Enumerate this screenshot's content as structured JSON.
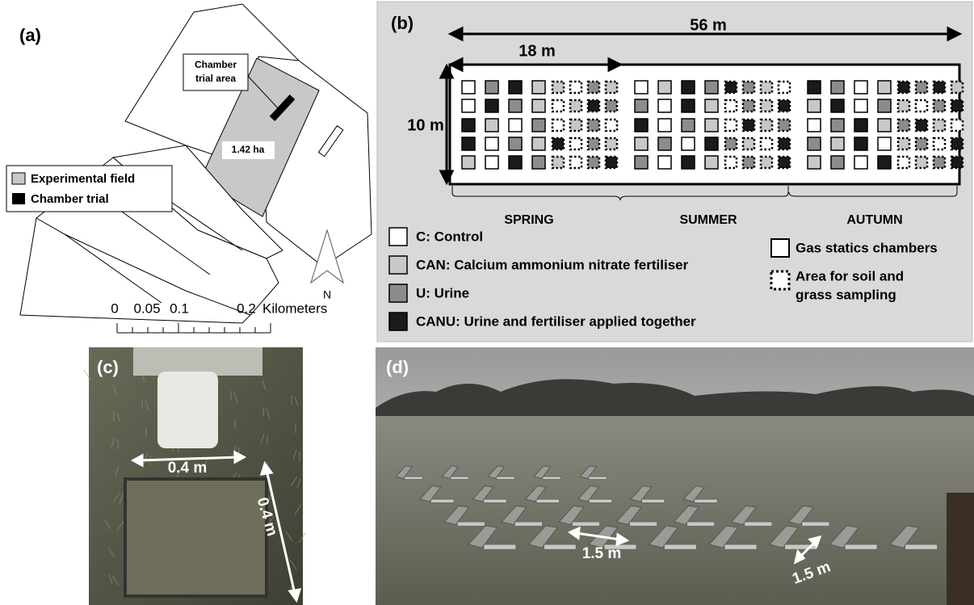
{
  "panel_a": {
    "label": "(a)",
    "chamber_callout": [
      "Chamber",
      "trial area"
    ],
    "area_label": "1.42 ha",
    "legend": [
      "Experimental field",
      "Chamber trial"
    ],
    "north": "N",
    "scale": {
      "ticks": [
        "0",
        "0.05",
        "0.1",
        "0.2"
      ],
      "unit": "Kilometers"
    }
  },
  "panel_b": {
    "label": "(b)",
    "total_length": "56 m",
    "season_length": "18 m",
    "width": "10 m",
    "seasons": [
      "SPRING",
      "SUMMER",
      "AUTUMN"
    ],
    "treatments": [
      "C: Control",
      "CAN: Calcium ammonium nitrate fertiliser",
      "U: Urine",
      "CANU: Urine and fertiliser applied together"
    ],
    "plot_types": [
      [
        "Gas statics chambers"
      ],
      [
        "Area for soil and",
        "grass sampling"
      ]
    ]
  },
  "panel_c": {
    "label": "(c)",
    "dimensions": [
      "0.4 m",
      "0.4 m"
    ]
  },
  "panel_d": {
    "label": "(d)",
    "dimensions": [
      "1.5 m",
      "1.5 m"
    ]
  }
}
